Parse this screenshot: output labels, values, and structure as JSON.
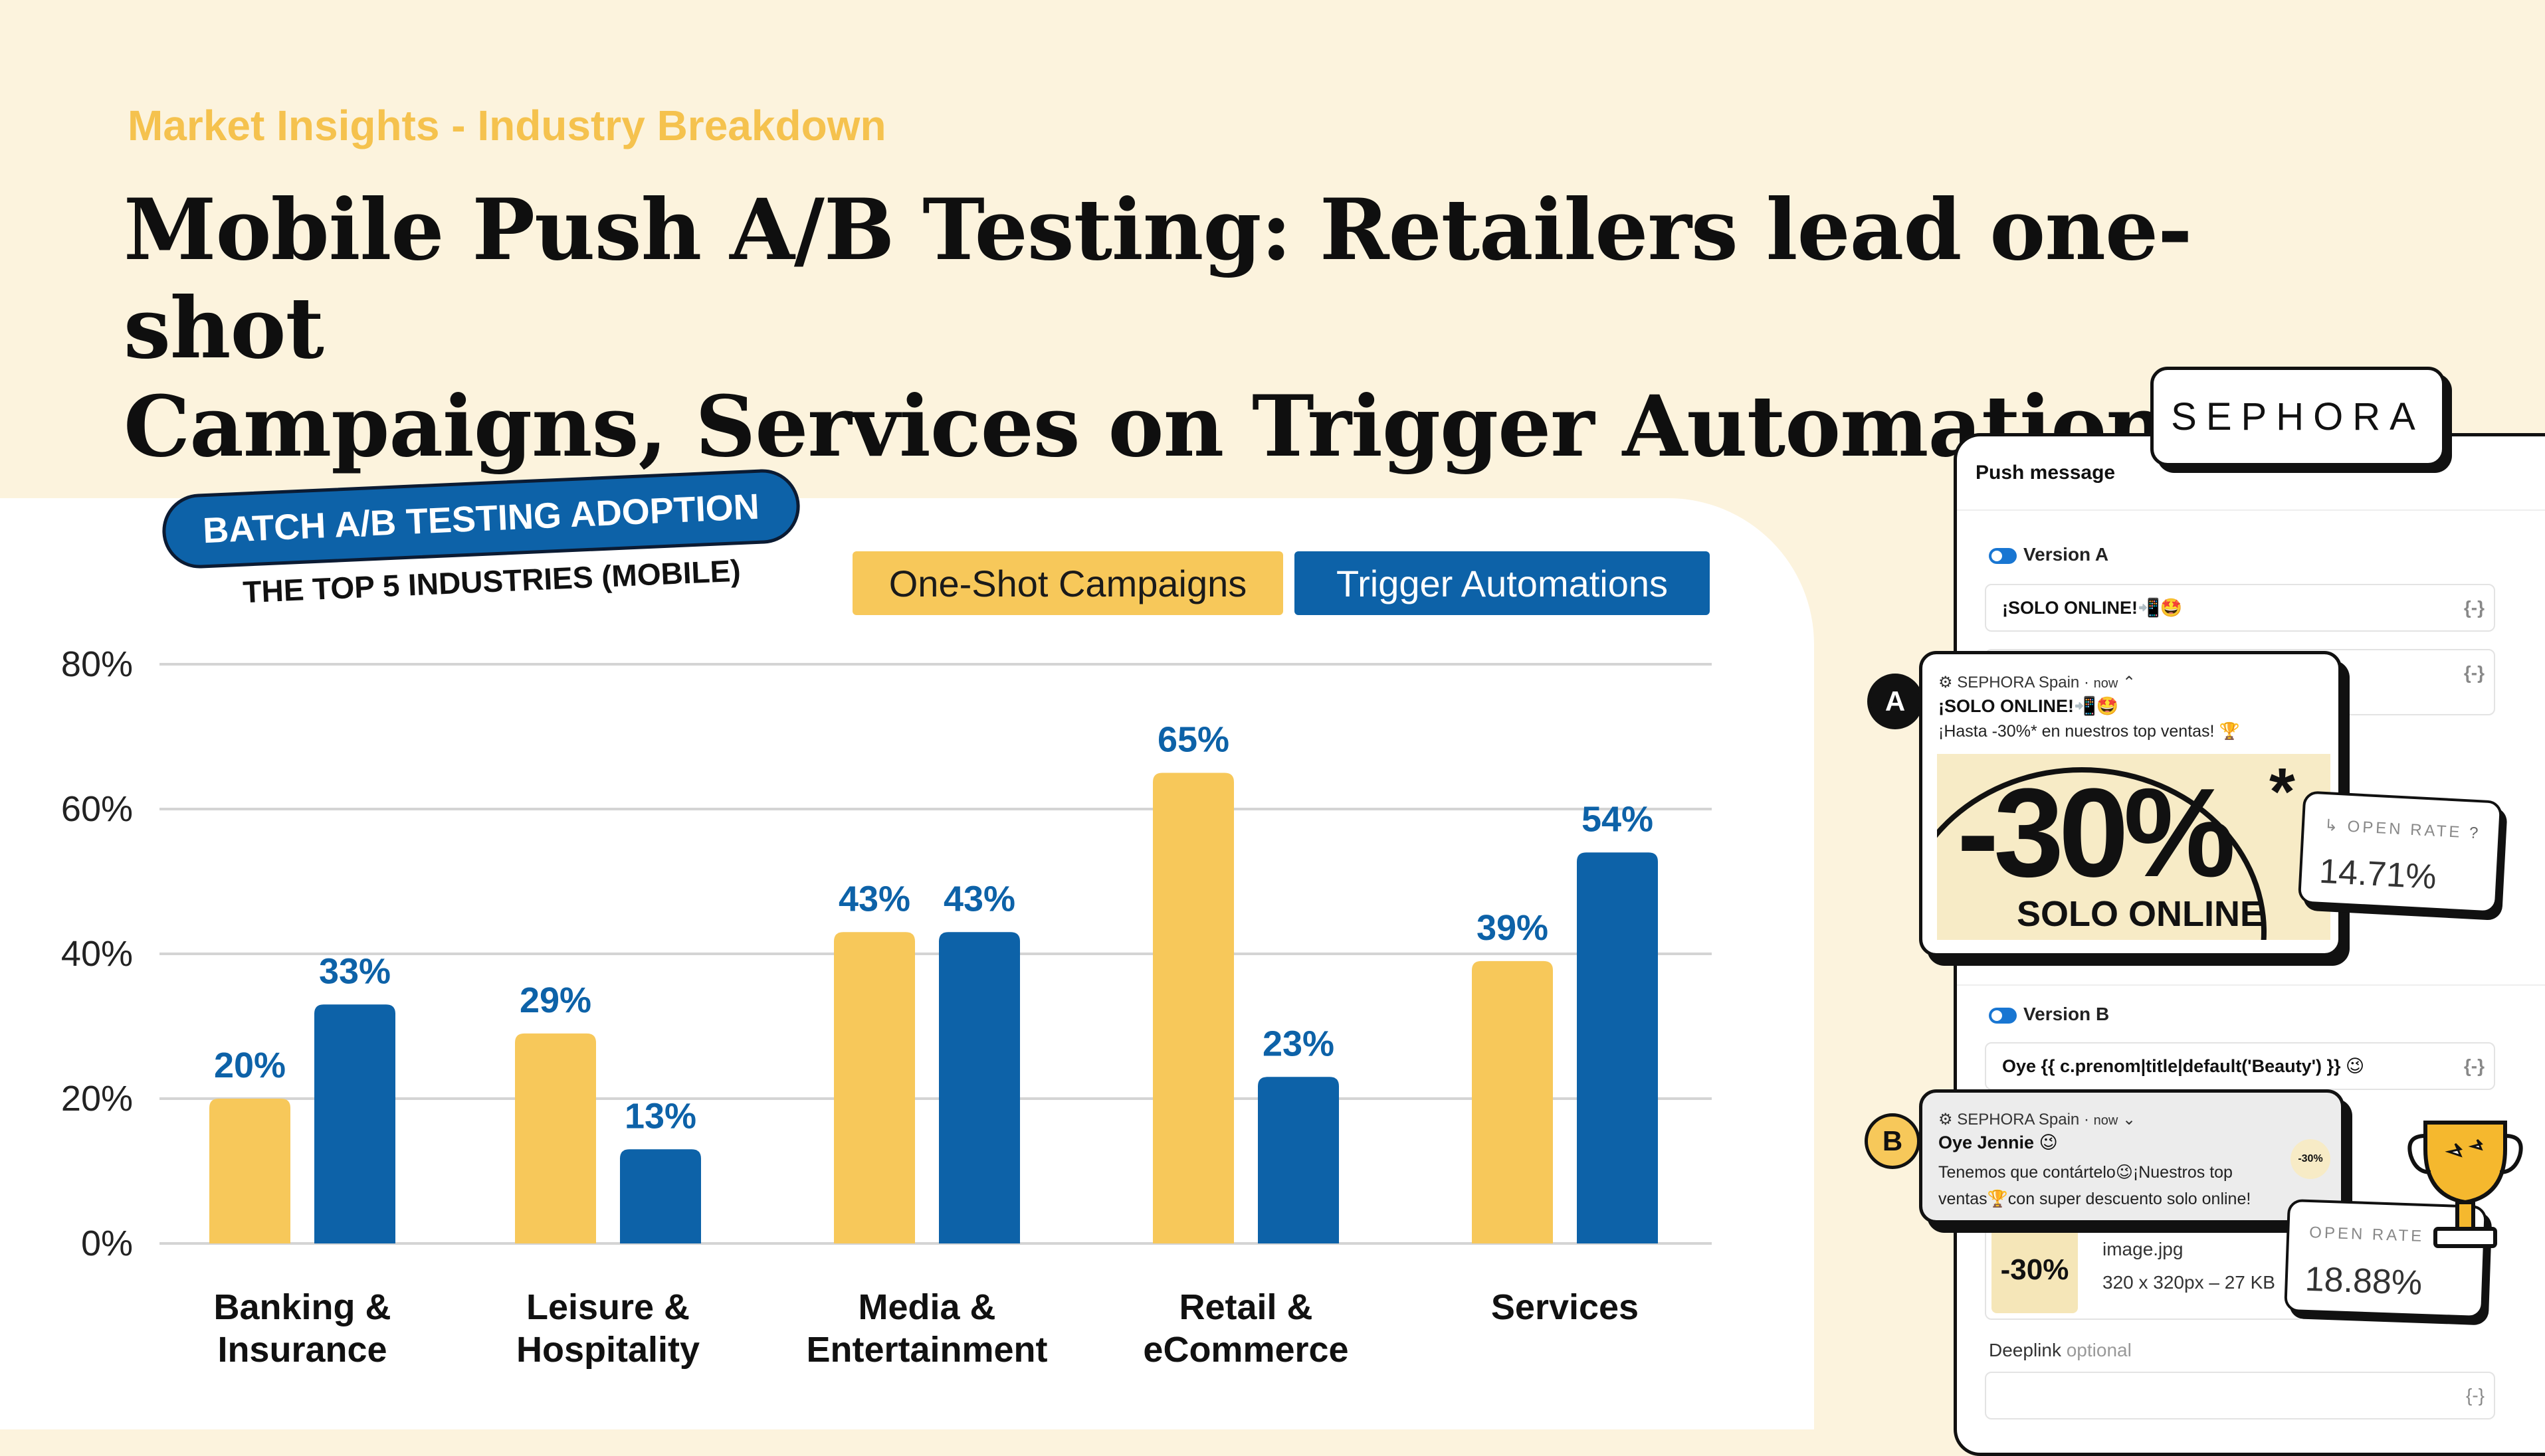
{
  "header": {
    "kicker": "Market Insights - Industry Breakdown",
    "title_line1": "Mobile Push A/B Testing: Retailers lead one-shot",
    "title_line2": "Campaigns, Services on Trigger Automations"
  },
  "badge": {
    "title": "BATCH A/B TESTING ADOPTION",
    "subtitle": "THE TOP 5 INDUSTRIES (MOBILE)"
  },
  "colors": {
    "one_shot": "#f7c85a",
    "trigger": "#0d62a8",
    "grid": "#d4d4d4"
  },
  "chart_data": {
    "type": "bar",
    "categories": [
      [
        "Banking &",
        "Insurance"
      ],
      [
        "Leisure &",
        "Hospitality"
      ],
      [
        "Media &",
        "Entertainment"
      ],
      [
        "Retail &",
        "eCommerce"
      ],
      [
        "Services"
      ]
    ],
    "series": [
      {
        "name": "One-Shot Campaigns",
        "values": [
          20,
          29,
          43,
          65,
          39
        ]
      },
      {
        "name": "Trigger Automations",
        "values": [
          33,
          13,
          43,
          23,
          54
        ]
      }
    ],
    "data_labels": {
      "One-Shot Campaigns": [
        "20%",
        "29%",
        "43%",
        "65%",
        "39%"
      ],
      "Trigger Automations": [
        "33%",
        "13%",
        "43%",
        "23%",
        "54%"
      ]
    },
    "yticks": [
      "0%",
      "20%",
      "40%",
      "60%",
      "80%"
    ],
    "ylim": [
      0,
      80
    ],
    "grid": true,
    "legend_position": "top-right"
  },
  "mockup": {
    "brand": "SEPHORA",
    "panel_title": "Push message",
    "version_a_label": "Version A",
    "version_a_title": "¡SOLO ONLINE!📲🤩",
    "version_b_label": "Version B",
    "version_b_title": "Oye {{ c.prenom|title|default('Beauty') }} 😉",
    "brace": "{-}",
    "notif_a": {
      "letter": "A",
      "app": "SEPHORA Spain",
      "time": "now",
      "title": "¡SOLO ONLINE!📲🤩",
      "body": "¡Hasta -30%* en nuestros top ventas! 🏆",
      "promo_big": "-30%",
      "promo_star": "*",
      "promo_small": "SOLO ONLINE"
    },
    "notif_b": {
      "letter": "B",
      "app": "SEPHORA Spain",
      "time": "now",
      "title": "Oye Jennie 😉",
      "body_line1": "Tenemos que contártelo😉¡Nuestros top",
      "body_line2": "ventas🏆con super descuento solo online!"
    },
    "open_rate_label": "OPEN RATE",
    "open_rate_a": "14.71%",
    "open_rate_b": "18.88%",
    "image_name": "image.jpg",
    "image_meta": "320 x 320px – 27 KB",
    "deeplink_label": "Deeplink",
    "deeplink_hint": "optional"
  }
}
